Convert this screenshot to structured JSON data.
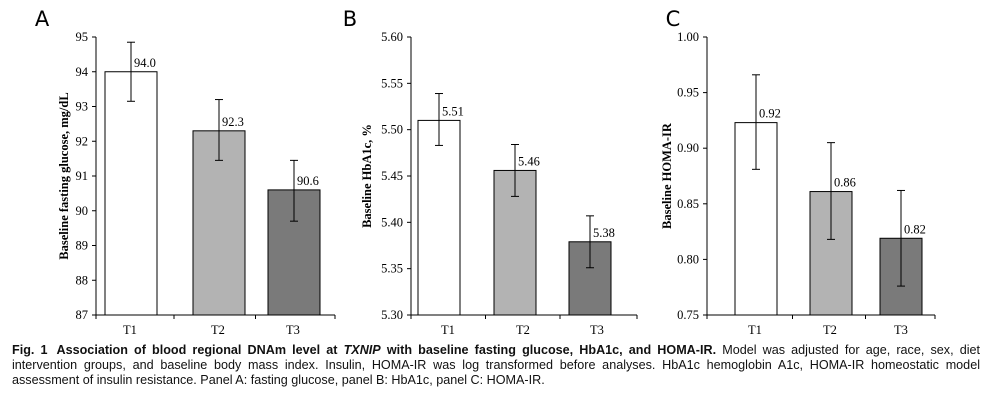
{
  "chart_data": [
    {
      "type": "bar",
      "panel": "A",
      "categories": [
        "T1",
        "T2",
        "T3"
      ],
      "values": [
        94.0,
        92.3,
        90.6
      ],
      "value_labels": [
        "94.0",
        "92.3",
        "90.6"
      ],
      "error_low": [
        93.15,
        91.45,
        89.7
      ],
      "error_high": [
        94.85,
        93.2,
        91.45
      ],
      "bar_colors": [
        "#ffffff",
        "#b3b3b3",
        "#7a7a7a"
      ],
      "title": "",
      "xlabel": "",
      "ylabel": "Baseline fasting glucose, mg/dL",
      "ylim": [
        87,
        95
      ],
      "yticks": [
        87,
        88,
        89,
        90,
        91,
        92,
        93,
        94,
        95
      ],
      "ytick_labels": [
        "87",
        "88",
        "89",
        "90",
        "91",
        "92",
        "93",
        "94",
        "95"
      ],
      "grid": false,
      "legend": "none"
    },
    {
      "type": "bar",
      "panel": "B",
      "categories": [
        "T1",
        "T2",
        "T3"
      ],
      "values": [
        5.51,
        5.456,
        5.379
      ],
      "value_labels": [
        "5.51",
        "5.46",
        "5.38"
      ],
      "error_low": [
        5.483,
        5.428,
        5.351
      ],
      "error_high": [
        5.539,
        5.484,
        5.407
      ],
      "bar_colors": [
        "#ffffff",
        "#b3b3b3",
        "#7a7a7a"
      ],
      "title": "",
      "xlabel": "",
      "ylabel": "Baseline HbA1c, %",
      "ylim": [
        5.3,
        5.6
      ],
      "yticks": [
        5.3,
        5.35,
        5.4,
        5.45,
        5.5,
        5.55,
        5.6
      ],
      "ytick_labels": [
        "5.30",
        "5.35",
        "5.40",
        "5.45",
        "5.50",
        "5.55",
        "5.60"
      ],
      "grid": false,
      "legend": "none"
    },
    {
      "type": "bar",
      "panel": "C",
      "categories": [
        "T1",
        "T2",
        "T3"
      ],
      "values": [
        0.923,
        0.861,
        0.819
      ],
      "value_labels": [
        "0.92",
        "0.86",
        "0.82"
      ],
      "error_low": [
        0.881,
        0.818,
        0.776
      ],
      "error_high": [
        0.966,
        0.905,
        0.862
      ],
      "bar_colors": [
        "#ffffff",
        "#b3b3b3",
        "#7a7a7a"
      ],
      "title": "",
      "xlabel": "",
      "ylabel": "Baseline HOMA-IR",
      "ylim": [
        0.75,
        1.0
      ],
      "yticks": [
        0.75,
        0.8,
        0.85,
        0.9,
        0.95,
        1.0
      ],
      "ytick_labels": [
        "0.75",
        "0.80",
        "0.85",
        "0.90",
        "0.95",
        "1.00"
      ],
      "grid": false,
      "legend": "none"
    }
  ],
  "caption": {
    "figure_label": "Fig. 1",
    "title_pre": "Association of blood regional DNAm level at ",
    "title_gene": "TXNIP",
    "title_post": " with baseline fasting glucose, HbA1c, and HOMA-IR.",
    "body": " Model was adjusted for age, race, sex, diet intervention groups, and baseline body mass index. Insulin, HOMA-IR was log transformed before analyses. HbA1c hemoglobin A1c, HOMA-IR homeostatic model assessment of insulin resistance. Panel A: fasting glucose, panel B: HbA1c, panel C: HOMA-IR."
  }
}
